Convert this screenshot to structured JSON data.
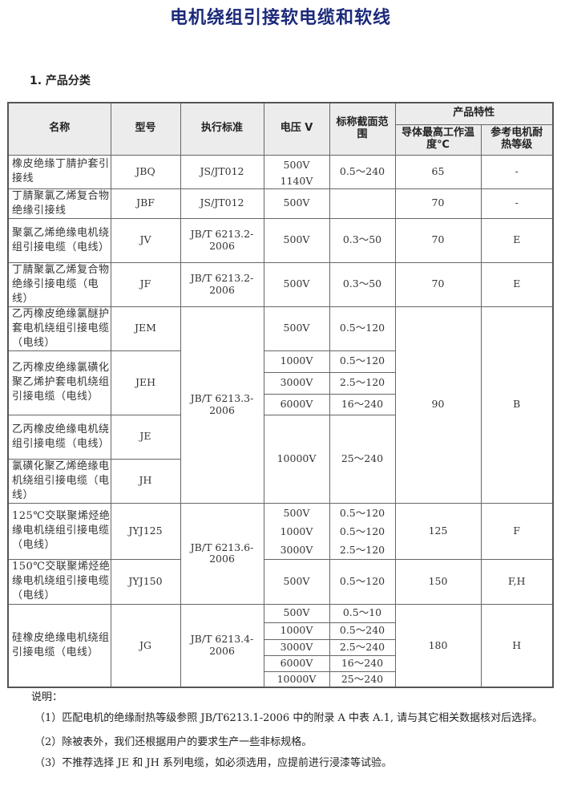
{
  "title": "电机绕组引接软电缆和软线",
  "section": "1. 产品分类",
  "header": {
    "name": "名称",
    "model": "型号",
    "standard": "执行标准",
    "voltage": "电压 V",
    "range": "标称截面范围",
    "props": "产品特性",
    "temp": "导体最高工作温度℃",
    "grade": "参考电机耐热等级"
  },
  "rows": {
    "jbq": {
      "name": "橡皮绝缘丁腈护套引接线",
      "model": "JBQ",
      "standard": "JS/JT012",
      "voltages": [
        "500V",
        "1140V"
      ],
      "range": "0.5～240",
      "temp": "65",
      "grade": "-"
    },
    "jbf": {
      "name": "丁腈聚氯乙烯复合物绝缘引接线",
      "model": "JBF",
      "standard": "JS/JT012",
      "voltage": "500V",
      "range": "",
      "temp": "70",
      "grade": "-"
    },
    "jv": {
      "name": "聚氯乙烯绝缘电机绕组引接电缆（电线）",
      "model": "JV",
      "standard": "JB/T 6213.2-2006",
      "voltage": "500V",
      "range": "0.3～50",
      "temp": "70",
      "grade": "E"
    },
    "jf": {
      "name": "丁腈聚氯乙烯复合物绝缘引接电缆（电线）",
      "model": "JF",
      "standard": "JB/T 6213.2-2006",
      "voltage": "500V",
      "range": "0.3～50",
      "temp": "70",
      "grade": "E"
    },
    "jem": {
      "name": "乙丙橡皮绝缘氯醚护套电机绕组引接电缆（电线）",
      "model": "JEM",
      "voltage": "500V",
      "range": "0.5～120"
    },
    "jeh": {
      "name": "乙丙橡皮绝缘氯磺化聚乙烯护套电机绕组引接电缆（电线）",
      "model": "JEH",
      "voltages": [
        "1000V",
        "3000V",
        "6000V"
      ],
      "ranges": [
        "0.5～120",
        "2.5～120",
        "16～240"
      ]
    },
    "je": {
      "name": "乙丙橡皮绝缘电机绕组引接电缆（电线）",
      "model": "JE"
    },
    "jh": {
      "name": "氯磺化聚乙烯绝缘电机绕组引接电缆（电线）",
      "model": "JH"
    },
    "group3": {
      "standard": "JB/T 6213.3-2006",
      "voltage": "10000V",
      "range": "25～240",
      "temp": "90",
      "grade": "B"
    },
    "jyj125": {
      "name": "125℃交联聚烯烃绝缘电机绕组引接电缆（电线）",
      "model": "JYJ125",
      "voltages": [
        "500V",
        "1000V",
        "3000V"
      ],
      "ranges": [
        "0.5～120",
        "0.5～120",
        "2.5～120"
      ],
      "temp": "125",
      "grade": "F"
    },
    "jyj150": {
      "name": "150℃交联聚烯烃绝缘电机绕组引接电缆（电线）",
      "model": "JYJ150",
      "voltage": "500V",
      "range": "0.5～120",
      "temp": "150",
      "grade": "F,H"
    },
    "group6": {
      "standard": "JB/T 6213.6-2006"
    },
    "jg": {
      "name": "硅橡皮绝缘电机绕组引接电缆（电线）",
      "model": "JG",
      "standard": "JB/T 6213.4-2006",
      "voltages": [
        "500V",
        "1000V",
        "3000V",
        "6000V",
        "10000V"
      ],
      "ranges": [
        "0.5～10",
        "0.5～240",
        "2.5～240",
        "16～240",
        "25～240"
      ],
      "temp": "180",
      "grade": "H"
    }
  },
  "notes": {
    "heading": "说明：",
    "items": [
      "（1）匹配电机的绝缘耐热等级参照 JB/T6213.1-2006 中的附录 A 中表 A.1, 请与其它相关数据核对后选择。",
      "（2）除被表外，我们还根据用户的要求生产一些非标规格。",
      "（3）不推荐选择 JE 和 JH 系列电缆，如必须选用，应提前进行浸漆等试验。"
    ]
  }
}
